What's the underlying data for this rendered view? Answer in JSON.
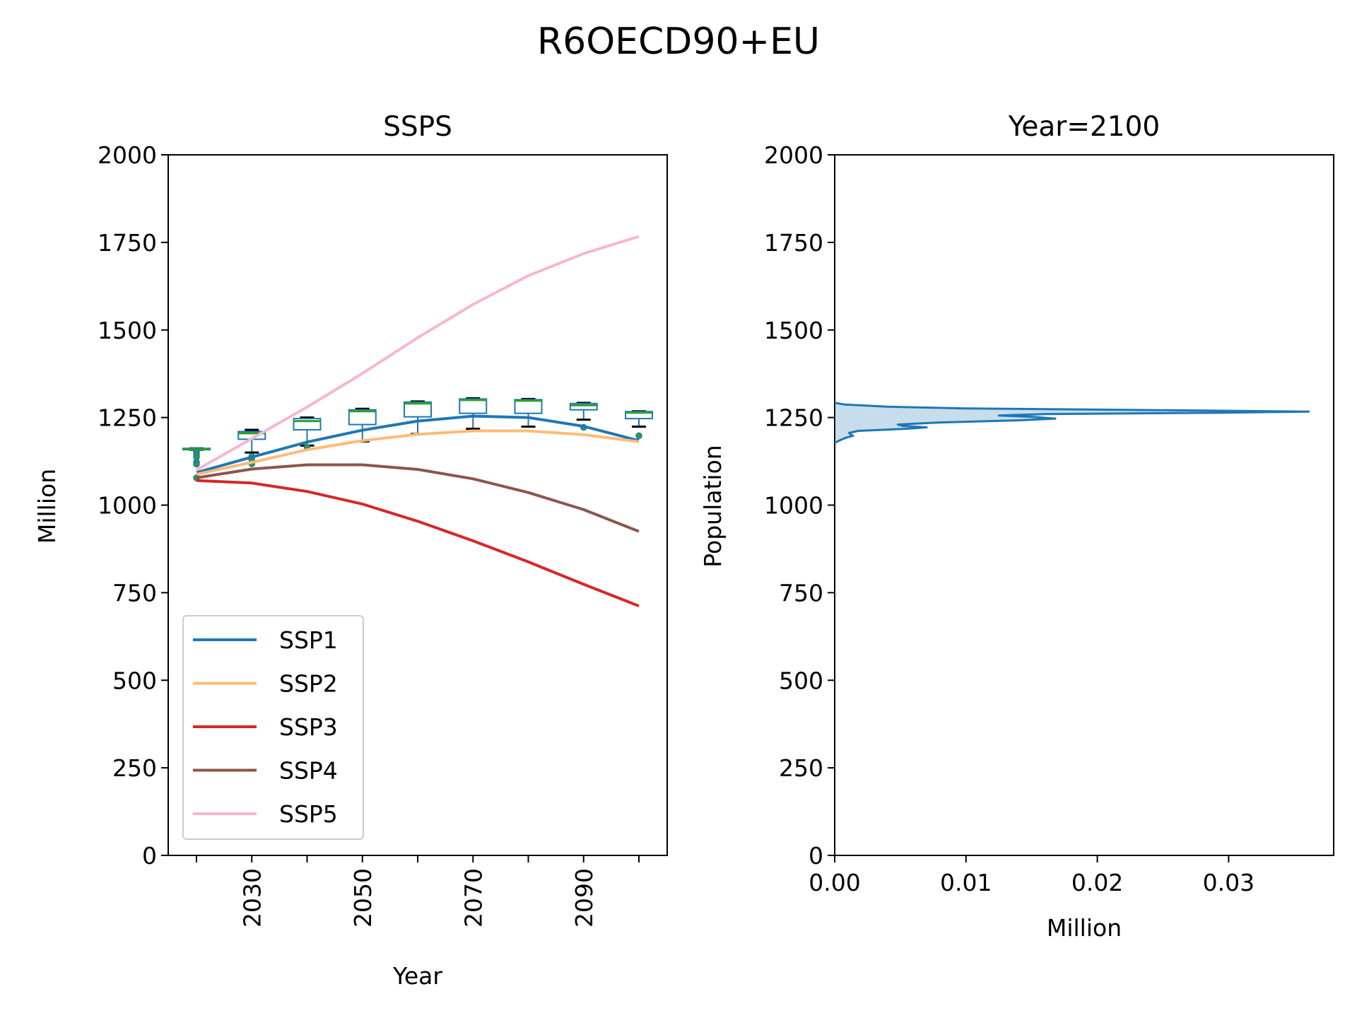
{
  "chart_data": [
    {
      "type": "line",
      "figure_title": "R6OECD90+EU",
      "title": "SSPS",
      "xlabel": "Year",
      "ylabel": "Million",
      "ylim": [
        0,
        2000
      ],
      "yticks": [
        0,
        250,
        500,
        750,
        1000,
        1250,
        1500,
        1750,
        2000
      ],
      "xticks": [
        2020,
        2030,
        2040,
        2050,
        2060,
        2070,
        2080,
        2090,
        2100
      ],
      "xtick_labels": [
        "",
        "2030",
        "",
        "2050",
        "",
        "2070",
        "",
        "2090",
        ""
      ],
      "x": [
        2020,
        2030,
        2040,
        2050,
        2060,
        2070,
        2080,
        2090,
        2100
      ],
      "legend_position": "lower-left",
      "series": [
        {
          "name": "SSP1",
          "color": "#1f77b4",
          "values": [
            1093,
            1137,
            1180,
            1214,
            1240,
            1254,
            1250,
            1225,
            1184
          ]
        },
        {
          "name": "SSP2",
          "color": "#ffbb78",
          "values": [
            1088,
            1122,
            1158,
            1184,
            1202,
            1212,
            1212,
            1201,
            1181
          ]
        },
        {
          "name": "SSP3",
          "color": "#d62728",
          "values": [
            1070,
            1063,
            1039,
            1003,
            954,
            898,
            838,
            774,
            712
          ]
        },
        {
          "name": "SSP4",
          "color": "#8c564b",
          "values": [
            1078,
            1103,
            1115,
            1115,
            1102,
            1075,
            1036,
            987,
            925
          ]
        },
        {
          "name": "SSP5",
          "color": "#f7b6d2",
          "values": [
            1100,
            1190,
            1280,
            1376,
            1478,
            1573,
            1655,
            1718,
            1767
          ]
        }
      ],
      "boxplots": [
        {
          "year": 2020,
          "q1": 1158,
          "median": 1160,
          "q3": 1162,
          "whislo": 1158,
          "whishi": 1162,
          "outliers": [
            1151,
            1144,
            1137,
            1123,
            1117,
            1078
          ]
        },
        {
          "year": 2030,
          "q1": 1188,
          "median": 1205,
          "q3": 1210,
          "whislo": 1150,
          "whishi": 1215,
          "outliers": [
            1139,
            1130,
            1118
          ]
        },
        {
          "year": 2040,
          "q1": 1215,
          "median": 1240,
          "q3": 1247,
          "whislo": 1170,
          "whishi": 1250,
          "outliers": [
            1165
          ]
        },
        {
          "year": 2050,
          "q1": 1230,
          "median": 1268,
          "q3": 1272,
          "whislo": 1182,
          "whishi": 1275,
          "outliers": []
        },
        {
          "year": 2060,
          "q1": 1252,
          "median": 1290,
          "q3": 1294,
          "whislo": 1203,
          "whishi": 1296,
          "outliers": []
        },
        {
          "year": 2070,
          "q1": 1262,
          "median": 1300,
          "q3": 1303,
          "whislo": 1218,
          "whishi": 1305,
          "outliers": []
        },
        {
          "year": 2080,
          "q1": 1262,
          "median": 1298,
          "q3": 1301,
          "whislo": 1224,
          "whishi": 1303,
          "outliers": []
        },
        {
          "year": 2090,
          "q1": 1272,
          "median": 1285,
          "q3": 1290,
          "whislo": 1244,
          "whishi": 1292,
          "outliers": [
            1222
          ]
        },
        {
          "year": 2100,
          "q1": 1247,
          "median": 1264,
          "q3": 1267,
          "whislo": 1224,
          "whishi": 1268,
          "outliers": [
            1198
          ]
        }
      ]
    },
    {
      "type": "area",
      "title": "Year=2100",
      "xlabel": "Million",
      "ylabel": "Population",
      "ylim": [
        0,
        2000
      ],
      "xlim": [
        0,
        0.038
      ],
      "yticks": [
        0,
        250,
        500,
        750,
        1000,
        1250,
        1500,
        1750,
        2000
      ],
      "xticks": [
        0.0,
        0.01,
        0.02,
        0.03
      ],
      "xtick_labels": [
        "0.00",
        "0.01",
        "0.02",
        "0.03"
      ],
      "color": "#1f77b4",
      "density_points": [
        {
          "y": 1178,
          "x": 0.0
        },
        {
          "y": 1185,
          "x": 0.0004
        },
        {
          "y": 1193,
          "x": 0.0009
        },
        {
          "y": 1198,
          "x": 0.0014
        },
        {
          "y": 1202,
          "x": 0.0012
        },
        {
          "y": 1206,
          "x": 0.0011
        },
        {
          "y": 1212,
          "x": 0.0018
        },
        {
          "y": 1218,
          "x": 0.0055
        },
        {
          "y": 1222,
          "x": 0.007
        },
        {
          "y": 1226,
          "x": 0.0052
        },
        {
          "y": 1230,
          "x": 0.0048
        },
        {
          "y": 1236,
          "x": 0.008
        },
        {
          "y": 1242,
          "x": 0.014
        },
        {
          "y": 1247,
          "x": 0.0168
        },
        {
          "y": 1252,
          "x": 0.015
        },
        {
          "y": 1256,
          "x": 0.0125
        },
        {
          "y": 1260,
          "x": 0.016
        },
        {
          "y": 1264,
          "x": 0.03
        },
        {
          "y": 1267,
          "x": 0.0361
        },
        {
          "y": 1271,
          "x": 0.025
        },
        {
          "y": 1276,
          "x": 0.01
        },
        {
          "y": 1281,
          "x": 0.004
        },
        {
          "y": 1287,
          "x": 0.0008
        },
        {
          "y": 1292,
          "x": 0.0
        }
      ]
    }
  ]
}
